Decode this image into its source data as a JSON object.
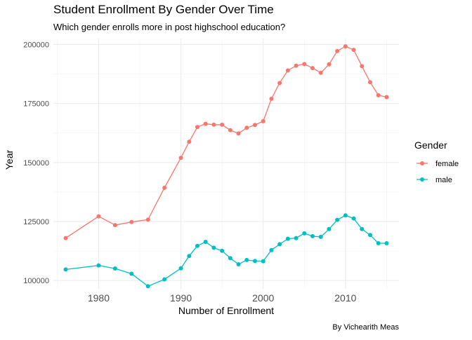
{
  "chart_data": {
    "type": "line",
    "title": "Student Enrollment By Gender Over Time",
    "subtitle": "Which gender enrolls more in post highschool education?",
    "xlabel": "Number of Enrollment",
    "ylabel": "Year",
    "caption": "By Vichearith Meas",
    "legend_title": "Gender",
    "legend_position": "right",
    "grid": true,
    "xlim": [
      1974.5,
      2016.5
    ],
    "ylim": [
      96500,
      202500
    ],
    "x_ticks": [
      1980,
      1990,
      2000,
      2010
    ],
    "x_tick_labels": [
      "1980",
      "1990",
      "2000",
      "2010"
    ],
    "y_ticks": [
      100000,
      125000,
      150000,
      175000,
      200000
    ],
    "y_tick_labels": [
      "100000",
      "125000",
      "150000",
      "175000",
      "200000"
    ],
    "series": [
      {
        "name": "female",
        "color": "#F8766D",
        "points": [
          [
            1976,
            118000
          ],
          [
            1980,
            127200
          ],
          [
            1982,
            123500
          ],
          [
            1984,
            124800
          ],
          [
            1986,
            125800
          ],
          [
            1988,
            139300
          ],
          [
            1990,
            152000
          ],
          [
            1991,
            158800
          ],
          [
            1992,
            165000
          ],
          [
            1993,
            166400
          ],
          [
            1994,
            166000
          ],
          [
            1995,
            166000
          ],
          [
            1996,
            163700
          ],
          [
            1997,
            162300
          ],
          [
            1998,
            164700
          ],
          [
            1999,
            165900
          ],
          [
            2000,
            167500
          ],
          [
            2001,
            177000
          ],
          [
            2002,
            183700
          ],
          [
            2003,
            189000
          ],
          [
            2004,
            191000
          ],
          [
            2005,
            191700
          ],
          [
            2006,
            190000
          ],
          [
            2007,
            188000
          ],
          [
            2008,
            191600
          ],
          [
            2009,
            197200
          ],
          [
            2010,
            199200
          ],
          [
            2011,
            197700
          ],
          [
            2012,
            190800
          ],
          [
            2013,
            184000
          ],
          [
            2014,
            178500
          ],
          [
            2015,
            177700
          ]
        ]
      },
      {
        "name": "male",
        "color": "#00BFC4",
        "points": [
          [
            1976,
            104700
          ],
          [
            1980,
            106400
          ],
          [
            1982,
            105100
          ],
          [
            1984,
            102900
          ],
          [
            1986,
            97600
          ],
          [
            1988,
            100500
          ],
          [
            1990,
            105200
          ],
          [
            1991,
            110400
          ],
          [
            1992,
            114700
          ],
          [
            1993,
            116400
          ],
          [
            1994,
            113900
          ],
          [
            1995,
            112600
          ],
          [
            1996,
            109500
          ],
          [
            1997,
            106900
          ],
          [
            1998,
            108700
          ],
          [
            1999,
            108300
          ],
          [
            2000,
            108200
          ],
          [
            2001,
            112900
          ],
          [
            2002,
            115400
          ],
          [
            2003,
            117700
          ],
          [
            2004,
            118000
          ],
          [
            2005,
            120000
          ],
          [
            2006,
            118800
          ],
          [
            2007,
            118500
          ],
          [
            2008,
            121800
          ],
          [
            2009,
            125700
          ],
          [
            2010,
            127600
          ],
          [
            2011,
            126300
          ],
          [
            2012,
            121800
          ],
          [
            2013,
            119300
          ],
          [
            2014,
            115800
          ],
          [
            2015,
            115800
          ]
        ]
      }
    ]
  }
}
